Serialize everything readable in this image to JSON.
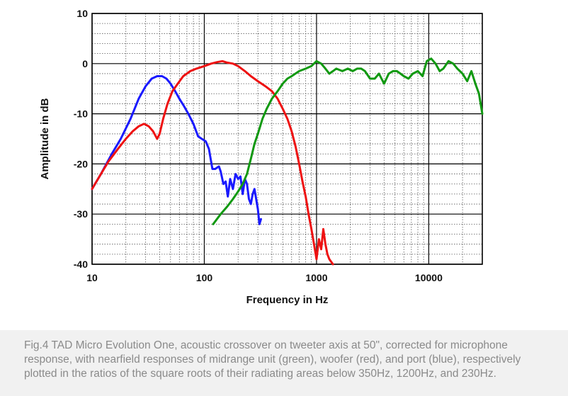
{
  "chart_data": {
    "type": "line",
    "xlabel": "Frequency in Hz",
    "ylabel": "Amplitude in dB",
    "x_scale": "log",
    "xlim": [
      10,
      30000
    ],
    "ylim": [
      -40,
      10
    ],
    "x_ticks": [
      10,
      100,
      1000,
      10000
    ],
    "x_tick_labels": [
      "10",
      "100",
      "1000",
      "10000"
    ],
    "y_ticks": [
      10,
      0,
      -10,
      -20,
      -30,
      -40
    ],
    "y_tick_labels": [
      "10",
      "0",
      "-10",
      "-20",
      "-30",
      "-40"
    ],
    "grid": true,
    "series": [
      {
        "color": "#1a1aff",
        "x": [
          10,
          12,
          15,
          18,
          22,
          26,
          30,
          34,
          38,
          42,
          46,
          50,
          55,
          60,
          66,
          72,
          80,
          88,
          95,
          103,
          110,
          118,
          125,
          135,
          140,
          148,
          155,
          162,
          170,
          180,
          190,
          200,
          210,
          220,
          230,
          240,
          250,
          260,
          270,
          280,
          290,
          300,
          310,
          320
        ],
        "y": [
          -25,
          -22,
          -18,
          -15,
          -11,
          -7,
          -4.5,
          -3,
          -2.5,
          -2.5,
          -3,
          -4,
          -5.5,
          -7,
          -8.5,
          -10,
          -12,
          -14.5,
          -15,
          -15.5,
          -17,
          -21,
          -21,
          -20.5,
          -21.5,
          -24,
          -23.5,
          -26.5,
          -23,
          -25,
          -22,
          -23,
          -22.5,
          -26,
          -23,
          -24,
          -27,
          -28,
          -26,
          -25,
          -27,
          -29,
          -32,
          -31
        ]
      },
      {
        "color": "#ee1111",
        "x": [
          10,
          12,
          14,
          17,
          20,
          23,
          26,
          29,
          32,
          35,
          38,
          40,
          43,
          47,
          52,
          58,
          65,
          75,
          85,
          100,
          115,
          130,
          145,
          160,
          180,
          200,
          230,
          260,
          300,
          350,
          400,
          450,
          500,
          550,
          600,
          650,
          700,
          750,
          800,
          850,
          900,
          950,
          1000,
          1050,
          1100,
          1150,
          1200,
          1250,
          1300,
          1350,
          1400
        ],
        "y": [
          -25,
          -22,
          -19.5,
          -17,
          -15,
          -13.5,
          -12.5,
          -12,
          -12.5,
          -13.5,
          -15,
          -14,
          -11,
          -8,
          -5.5,
          -4,
          -2.5,
          -1.5,
          -1,
          -0.5,
          0,
          0.3,
          0.5,
          0.2,
          0,
          -0.5,
          -1.5,
          -2.5,
          -3.5,
          -4.5,
          -5.5,
          -7,
          -9,
          -11,
          -13.5,
          -16.5,
          -20,
          -23.5,
          -26.5,
          -30,
          -33,
          -36,
          -39,
          -35,
          -37,
          -33,
          -36,
          -38,
          -39,
          -39.5,
          -40
        ]
      },
      {
        "color": "#119911",
        "x": [
          120,
          140,
          160,
          180,
          200,
          220,
          240,
          260,
          280,
          300,
          330,
          360,
          400,
          450,
          500,
          550,
          600,
          700,
          800,
          900,
          1000,
          1100,
          1200,
          1300,
          1400,
          1500,
          1700,
          1900,
          2100,
          2300,
          2500,
          2700,
          3000,
          3300,
          3600,
          4000,
          4400,
          4800,
          5200,
          5600,
          6000,
          6600,
          7200,
          8000,
          8800,
          9600,
          10500,
          11500,
          12500,
          13500,
          15000,
          16500,
          18000,
          20000,
          22000,
          24000,
          26000,
          28000,
          30000
        ],
        "y": [
          -32,
          -30,
          -28.5,
          -27,
          -25.5,
          -24,
          -22,
          -19,
          -16,
          -14,
          -11,
          -9,
          -7,
          -5.5,
          -4,
          -3,
          -2.5,
          -1.5,
          -1,
          -0.5,
          0.5,
          0,
          -1,
          -2,
          -1.5,
          -1,
          -1.5,
          -1,
          -1.5,
          -1,
          -1,
          -1.5,
          -3,
          -3,
          -2,
          -4,
          -2,
          -1.5,
          -1.5,
          -2,
          -2.5,
          -3,
          -2,
          -1.5,
          -2.5,
          0.5,
          1,
          0,
          -1.5,
          -1,
          0.5,
          0,
          -1,
          -2,
          -3.5,
          -1.5,
          -4,
          -6,
          -10
        ]
      }
    ]
  },
  "caption": "Fig.4 TAD Micro Evolution One, acoustic crossover on tweeter axis at 50\", corrected for microphone response, with nearfield responses of midrange unit (green), woofer (red), and port (blue), respectively plotted in the ratios of the square roots of their radiating areas below 350Hz, 1200Hz, and 230Hz."
}
